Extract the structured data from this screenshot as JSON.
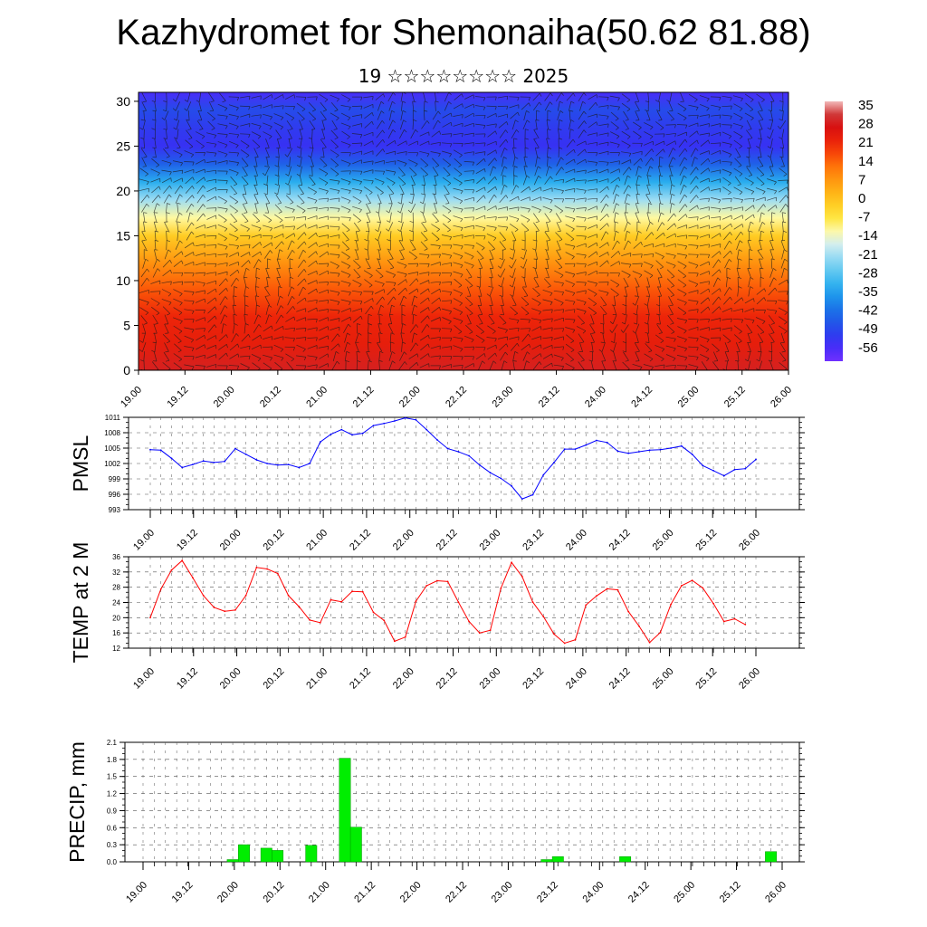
{
  "title": "Kazhydromet for Shemonaiha(50.62 81.88)",
  "subtitle": "19 ☆☆☆☆☆☆☆☆ 2025",
  "x_tick_labels": [
    "19.00",
    "19.12",
    "20.00",
    "20.12",
    "21.00",
    "21.12",
    "22.00",
    "22.12",
    "23.00",
    "23.12",
    "24.00",
    "24.12",
    "25.00",
    "25.12",
    "26.00"
  ],
  "chart_data": [
    {
      "type": "heatmap",
      "title": "",
      "xlabel": "",
      "ylabel": "",
      "ylim": [
        0,
        31
      ],
      "y_ticks": [
        0,
        5,
        10,
        15,
        20,
        25,
        30
      ],
      "colorbar": {
        "labels": [
          "35",
          "28",
          "21",
          "14",
          "7",
          "0",
          "-7",
          "-14",
          "-21",
          "-28",
          "-35",
          "-42",
          "-49",
          "-56"
        ],
        "range": [
          -63,
          38
        ]
      },
      "temperature_profile": {
        "heights": [
          0,
          3,
          6,
          9,
          12,
          15,
          17,
          19,
          21,
          23,
          25,
          27,
          29,
          31
        ],
        "values": [
          30,
          24,
          22,
          16,
          8,
          -2,
          -12,
          -22,
          -34,
          -46,
          -55,
          -53,
          -50,
          -58
        ]
      },
      "overlay": "wind barbs"
    },
    {
      "type": "line",
      "ylabel": "PMSL",
      "ylim": [
        993,
        1011
      ],
      "y_ticks": [
        "993",
        "996",
        "999",
        "1002",
        "1005",
        "1008",
        "1011"
      ],
      "color": "#0000ff",
      "values": [
        1004.7,
        1004.6,
        1003.0,
        1001.2,
        1001.8,
        1002.5,
        1002.2,
        1002.4,
        1004.9,
        1003.8,
        1002.7,
        1002.0,
        1001.7,
        1001.8,
        1001.2,
        1002.0,
        1006.2,
        1007.7,
        1008.6,
        1007.6,
        1007.9,
        1009.4,
        1009.8,
        1010.3,
        1010.9,
        1010.5,
        1008.6,
        1006.6,
        1004.9,
        1004.3,
        1003.5,
        1001.7,
        1000.2,
        999.1,
        997.6,
        995.1,
        995.9,
        999.8,
        1002.2,
        1004.8,
        1004.8,
        1005.6,
        1006.5,
        1006.1,
        1004.4,
        1004.0,
        1004.3,
        1004.6,
        1004.7,
        1005.0,
        1005.4,
        1003.8,
        1001.6,
        1000.6,
        999.6,
        1000.8,
        1001.0,
        1002.8
      ]
    },
    {
      "type": "line",
      "ylabel": "TEMP at 2 M",
      "ylim": [
        12,
        36
      ],
      "y_ticks": [
        "12",
        "16",
        "20",
        "24",
        "28",
        "32",
        "36"
      ],
      "color": "#ff0000",
      "values": [
        20.0,
        27.5,
        32.5,
        35.0,
        30.5,
        25.8,
        22.7,
        21.7,
        22.0,
        25.8,
        33.2,
        32.8,
        31.6,
        25.8,
        22.9,
        19.4,
        18.7,
        24.7,
        24.2,
        26.9,
        26.8,
        21.4,
        19.3,
        13.8,
        14.9,
        24.3,
        28.4,
        29.7,
        29.5,
        24.1,
        19.0,
        16.0,
        16.7,
        27.7,
        34.5,
        30.8,
        24.1,
        20.3,
        15.7,
        13.3,
        14.2,
        23.3,
        25.7,
        27.6,
        27.3,
        21.6,
        17.8,
        13.5,
        16.1,
        23.5,
        28.4,
        29.8,
        27.8,
        23.7,
        19.0,
        19.7,
        18.2
      ]
    },
    {
      "type": "bar",
      "ylabel": "PRECIP, mm",
      "ylim": [
        0,
        2.1
      ],
      "y_ticks": [
        "0.0",
        "0.3",
        "0.6",
        "0.9",
        "1.2",
        "1.5",
        "1.8",
        "2.1"
      ],
      "color": "#00ee00",
      "bars": [
        {
          "x_index": 8,
          "value": 0.04
        },
        {
          "x_index": 9,
          "value": 0.3
        },
        {
          "x_index": 11,
          "value": 0.24
        },
        {
          "x_index": 12,
          "value": 0.2
        },
        {
          "x_index": 15,
          "value": 0.29
        },
        {
          "x_index": 18,
          "value": 1.82
        },
        {
          "x_index": 19,
          "value": 0.61
        },
        {
          "x_index": 36,
          "value": 0.04
        },
        {
          "x_index": 37,
          "value": 0.09
        },
        {
          "x_index": 43,
          "value": 0.09
        },
        {
          "x_index": 56,
          "value": 0.18
        }
      ]
    }
  ]
}
